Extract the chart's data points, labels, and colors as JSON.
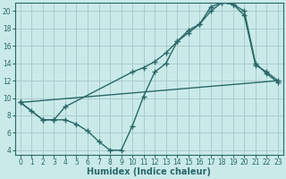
{
  "xlabel": "Humidex (Indice chaleur)",
  "bg_color": "#caeaea",
  "grid_color": "#aacccc",
  "line_color": "#2a6868",
  "xlim": [
    -0.5,
    23.5
  ],
  "ylim": [
    3.5,
    21.0
  ],
  "xticks": [
    0,
    1,
    2,
    3,
    4,
    5,
    6,
    7,
    8,
    9,
    10,
    11,
    12,
    13,
    14,
    15,
    16,
    17,
    18,
    19,
    20,
    21,
    22,
    23
  ],
  "yticks": [
    4,
    6,
    8,
    10,
    12,
    14,
    16,
    18,
    20
  ],
  "line1_x": [
    0,
    1,
    2,
    3,
    4,
    5,
    6,
    7,
    8,
    9,
    10,
    11,
    12,
    13,
    14,
    15,
    16,
    17,
    18,
    19,
    20,
    21,
    22,
    23
  ],
  "line1_y": [
    9.5,
    8.5,
    7.5,
    7.5,
    7.5,
    7.0,
    6.2,
    5.0,
    4.0,
    4.0,
    6.8,
    10.2,
    13.0,
    14.0,
    16.5,
    17.8,
    18.5,
    20.0,
    21.0,
    20.8,
    20.0,
    14.0,
    12.8,
    11.8
  ],
  "line2_x": [
    0,
    2,
    3,
    4,
    10,
    11,
    12,
    13,
    14,
    15,
    16,
    17,
    18,
    19,
    20,
    21,
    22,
    23
  ],
  "line2_y": [
    9.5,
    7.5,
    7.5,
    9.0,
    13.0,
    13.5,
    14.2,
    15.2,
    16.5,
    17.5,
    18.5,
    20.5,
    21.0,
    20.8,
    19.5,
    13.8,
    13.0,
    12.0
  ],
  "line3_x": [
    0,
    23
  ],
  "line3_y": [
    9.5,
    12.0
  ],
  "marker": "+",
  "markersize": 4,
  "linewidth": 1.0,
  "tick_fontsize": 5.5,
  "xlabel_fontsize": 7
}
